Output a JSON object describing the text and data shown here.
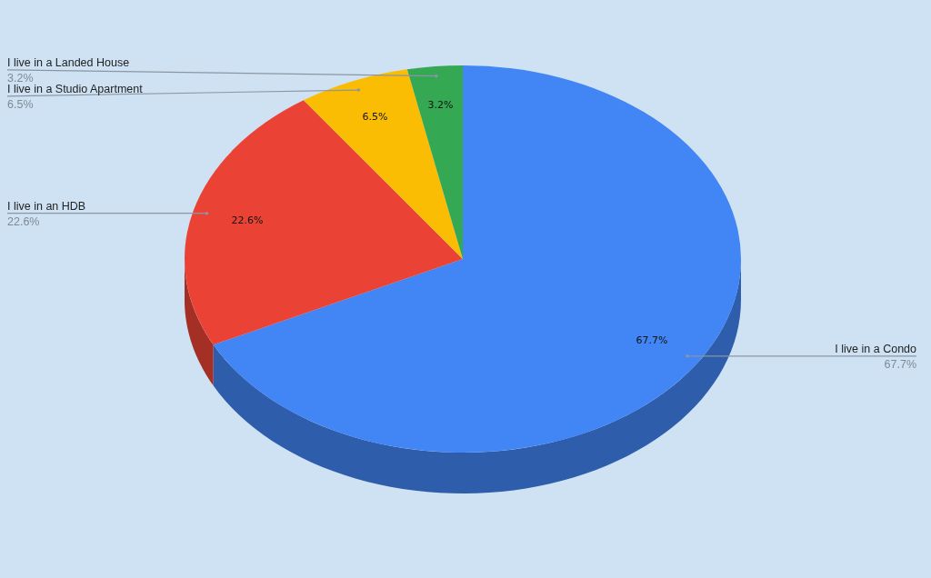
{
  "chart_data": {
    "type": "pie",
    "categories": [
      "I live in a Condo",
      "I live in an HDB",
      "I live in a Studio Apartment",
      "I live in a Landed House"
    ],
    "values": [
      67.7,
      22.6,
      6.5,
      3.2
    ],
    "colors": [
      "#4285f4",
      "#ea4335",
      "#fbbc04",
      "#34a853"
    ],
    "value_labels": [
      "67.7%",
      "22.6%",
      "6.5%",
      "3.2%"
    ]
  }
}
